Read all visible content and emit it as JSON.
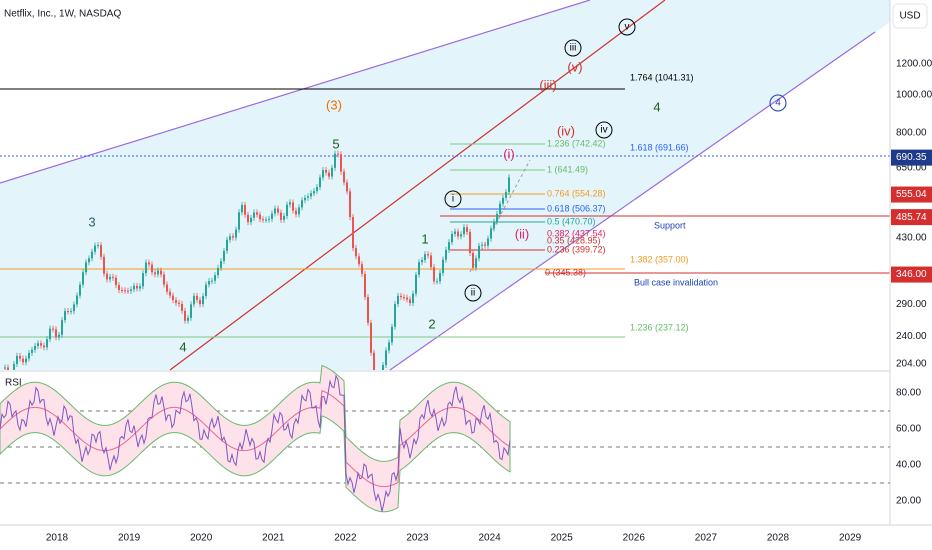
{
  "header": {
    "title": "Netflix, Inc., 1W, NASDAQ",
    "currency": "USD"
  },
  "price_axis": {
    "ticks": [
      "1200.00",
      "1000.00",
      "800.00",
      "650.00",
      "430.00",
      "290.00",
      "240.00",
      "204.00"
    ],
    "badges": [
      "690.35",
      "555.04",
      "485.74",
      "346.00"
    ]
  },
  "rsi": {
    "label": "RSI",
    "ticks": [
      "80.00",
      "60.00",
      "40.00",
      "20.00"
    ]
  },
  "time_axis": [
    "2018",
    "2019",
    "2020",
    "2021",
    "2022",
    "2023",
    "2024",
    "2025",
    "2026",
    "2027",
    "2028",
    "2029"
  ],
  "waves": [
    "3",
    "4",
    "5",
    "(3)",
    "1",
    "2",
    "i",
    "ii",
    "iii",
    "iv",
    "v",
    "(i)",
    "(ii)",
    "(iii)",
    "(iv)",
    "(v)",
    "4",
    "4"
  ],
  "levels": [
    "1.764 (1041.31)",
    "1.618 (691.66)",
    "1.236 (742.42)",
    "1 (641.49)",
    "0.764 (554.28)",
    "0.618 (506.37)",
    "0.5 (470.70)",
    "0.382 (437.54)",
    "0.35 (428.95)",
    "0.236 (399.72)",
    "1.382 (357.00)",
    "0 (345.38)",
    "1.236 (237.12)"
  ],
  "notes": [
    "Support",
    "Bull case invalidation"
  ]
}
